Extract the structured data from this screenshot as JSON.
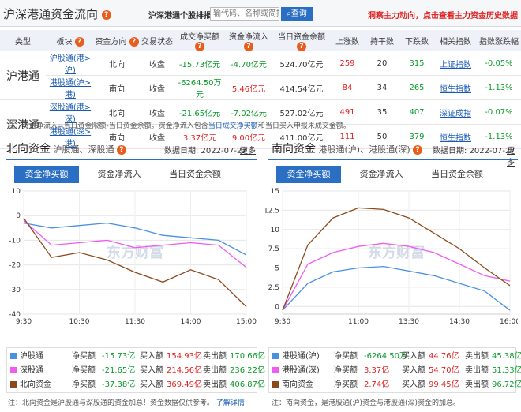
{
  "header": {
    "title": "沪深港通资金流向",
    "search_label": "沪深港通个股排报:",
    "search_placeholder": "输代码、名称或简拼",
    "search_button": "查询",
    "promo": "洞察主力动向，点击查看主力资金历史数据"
  },
  "table": {
    "columns": [
      "类型",
      "板块",
      "资金方向",
      "交易状态",
      "成交净买额",
      "资金净流入",
      "当日资金余额",
      "上涨数",
      "持平数",
      "下跌数",
      "相关指数",
      "指数涨跌幅"
    ],
    "groups": [
      {
        "type": "沪港通",
        "rows": [
          {
            "board": "沪股通(港>沪)",
            "direction": "北向",
            "status": "收盘",
            "net_buy": "-15.73亿元",
            "net_inflow": "-4.70亿元",
            "balance": "524.70亿元",
            "up": "259",
            "flat": "20",
            "down": "315",
            "index": "上证指数",
            "change": "-0.05%"
          },
          {
            "board": "港股通(沪>港)",
            "direction": "南向",
            "status": "收盘",
            "net_buy": "-6264.50万元",
            "net_inflow": "5.46亿元",
            "balance": "414.54亿元",
            "up": "84",
            "flat": "34",
            "down": "265",
            "index": "恒生指数",
            "change": "-1.13%"
          }
        ]
      },
      {
        "type": "深港通",
        "rows": [
          {
            "board": "深股通(港>深)",
            "direction": "北向",
            "status": "收盘",
            "net_buy": "-21.65亿元",
            "net_inflow": "-7.02亿元",
            "balance": "527.02亿元",
            "up": "491",
            "flat": "35",
            "down": "407",
            "index": "深证成指",
            "change": "-0.07%"
          },
          {
            "board": "港股通(深>港)",
            "direction": "南向",
            "status": "收盘",
            "net_buy": "3.37亿元",
            "net_inflow": "9.00亿元",
            "balance": "411.00亿元",
            "up": "111",
            "flat": "50",
            "down": "379",
            "index": "恒生指数",
            "change": "-1.13%"
          }
        ]
      }
    ],
    "note_prefix": "注：资金净流入=当日资金限额-当日资金余额。资金净流入包含",
    "note_link": "当日成交净买额",
    "note_suffix": "和当日买入申报未成交金额。"
  },
  "north": {
    "title": "北向资金",
    "subtitle": "沪股通、深股通",
    "date_label": "数据日期: 2022-07-27",
    "more": "更多",
    "tabs": [
      "资金净买额",
      "资金净流入",
      "当日资金余额"
    ],
    "watermark": "东方财富",
    "legend": [
      {
        "name": "沪股通",
        "net_label": "净买额",
        "net": "-15.73亿",
        "buy_label": "买入额",
        "buy": "154.93亿",
        "sell_label": "卖出额",
        "sell": "170.66亿",
        "color": "#4a90e2"
      },
      {
        "name": "深股通",
        "net_label": "净买额",
        "net": "-21.65亿",
        "buy_label": "买入额",
        "buy": "214.56亿",
        "sell_label": "卖出额",
        "sell": "236.22亿",
        "color": "#f05cf0"
      },
      {
        "name": "北向资金",
        "net_label": "净买额",
        "net": "-37.38亿",
        "buy_label": "买入额",
        "buy": "369.49亿",
        "sell_label": "卖出额",
        "sell": "406.87亿",
        "color": "#8b4a1c"
      }
    ],
    "footnote": "注：北向资金是沪股通与深股通的资金加总！资金数据仅供参考。",
    "footnote_link": "了解详情"
  },
  "south": {
    "title": "南向资金",
    "subtitle": "港股通(沪)、港股通(深)",
    "date_label": "数据日期: 2022-07-27",
    "more": "更多",
    "tabs": [
      "资金净买额",
      "资金净流入",
      "当日资金余额"
    ],
    "watermark": "东方财富",
    "legend": [
      {
        "name": "港股通(沪)",
        "net_label": "净买额",
        "net": "-6264.50万",
        "buy_label": "买入额",
        "buy": "44.76亿",
        "sell_label": "卖出额",
        "sell": "45.38亿",
        "color": "#4a90e2"
      },
      {
        "name": "港股通(深)",
        "net_label": "净买额",
        "net": "3.37亿",
        "buy_label": "买入额",
        "buy": "54.70亿",
        "sell_label": "卖出额",
        "sell": "51.33亿",
        "color": "#f05cf0"
      },
      {
        "name": "南向资金",
        "net_label": "净买额",
        "net": "2.74亿",
        "buy_label": "买入额",
        "buy": "99.45亿",
        "sell_label": "卖出额",
        "sell": "96.72亿",
        "color": "#8b4a1c"
      }
    ],
    "footnote": "注：南向资金，是港股通(沪)资金与港股通(深)资金的加总。"
  },
  "chart_data": [
    {
      "type": "line",
      "x": [
        "9:30",
        "10:00",
        "10:30",
        "11:00",
        "11:30",
        "13:30",
        "14:00",
        "14:30",
        "15:00"
      ],
      "ylim": [
        -40,
        10
      ],
      "yticks": [
        10,
        0,
        -10,
        -20,
        -30,
        -40
      ],
      "xticks": [
        "9:30",
        "10:30",
        "11:30",
        "14:00",
        "15:00"
      ],
      "grid": true,
      "series": [
        {
          "name": "沪股通",
          "color": "#4a90e2",
          "values": [
            -3,
            -5,
            -4,
            -3,
            -5,
            -8,
            -9,
            -10,
            -16
          ]
        },
        {
          "name": "深股通",
          "color": "#f05cf0",
          "values": [
            -2,
            -12,
            -11,
            -10,
            -13,
            -12,
            -11,
            -12,
            -21
          ]
        },
        {
          "name": "北向资金",
          "color": "#8b4a1c",
          "values": [
            -1,
            -17,
            -15,
            -18,
            -23,
            -27,
            -22,
            -26,
            -37
          ]
        }
      ]
    },
    {
      "type": "line",
      "x": [
        "9:30",
        "10:00",
        "10:30",
        "11:00",
        "11:30",
        "13:30",
        "14:00",
        "14:30",
        "15:00",
        "16:00"
      ],
      "ylim": [
        -1,
        15
      ],
      "yticks": [
        15,
        12.5,
        10,
        7.5,
        5,
        2.5,
        0
      ],
      "xticks": [
        "9:30",
        "11:00",
        "13:30",
        "14:30",
        "16:00"
      ],
      "grid": true,
      "series": [
        {
          "name": "港股通(沪)",
          "color": "#4a90e2",
          "values": [
            -0.5,
            3,
            4.5,
            5,
            5.2,
            4.6,
            4,
            3,
            2,
            -0.5
          ]
        },
        {
          "name": "港股通(深)",
          "color": "#f05cf0",
          "values": [
            -0.5,
            5.5,
            7,
            7.8,
            8.2,
            7.8,
            7,
            5.5,
            4,
            3.3
          ]
        },
        {
          "name": "南向资金",
          "color": "#8b4a1c",
          "values": [
            -0.5,
            8,
            11.5,
            12.8,
            12.6,
            11.5,
            9.5,
            7.5,
            5,
            2.7
          ]
        }
      ]
    }
  ]
}
